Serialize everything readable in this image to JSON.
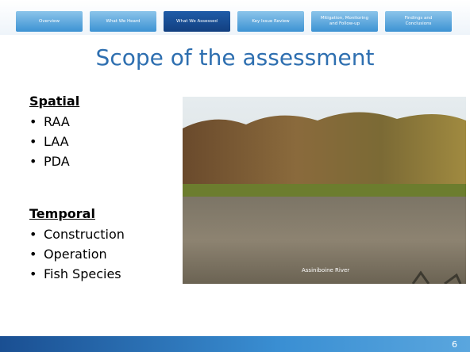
{
  "nav": {
    "tabs": [
      "Overview",
      "What We Heard",
      "What We Assessed",
      "Key Issue Review",
      "Mitigation, Monitoring and Follow-up",
      "Findings and Conclusions"
    ]
  },
  "title": "Scope of the assessment",
  "sections": [
    {
      "heading": "Spatial",
      "items": [
        "RAA",
        "LAA",
        "PDA"
      ]
    },
    {
      "heading": "Temporal",
      "items": [
        "Construction",
        "Operation",
        "Fish Species"
      ]
    }
  ],
  "photo": {
    "caption": "Assiniboine River"
  },
  "page_number": "6"
}
